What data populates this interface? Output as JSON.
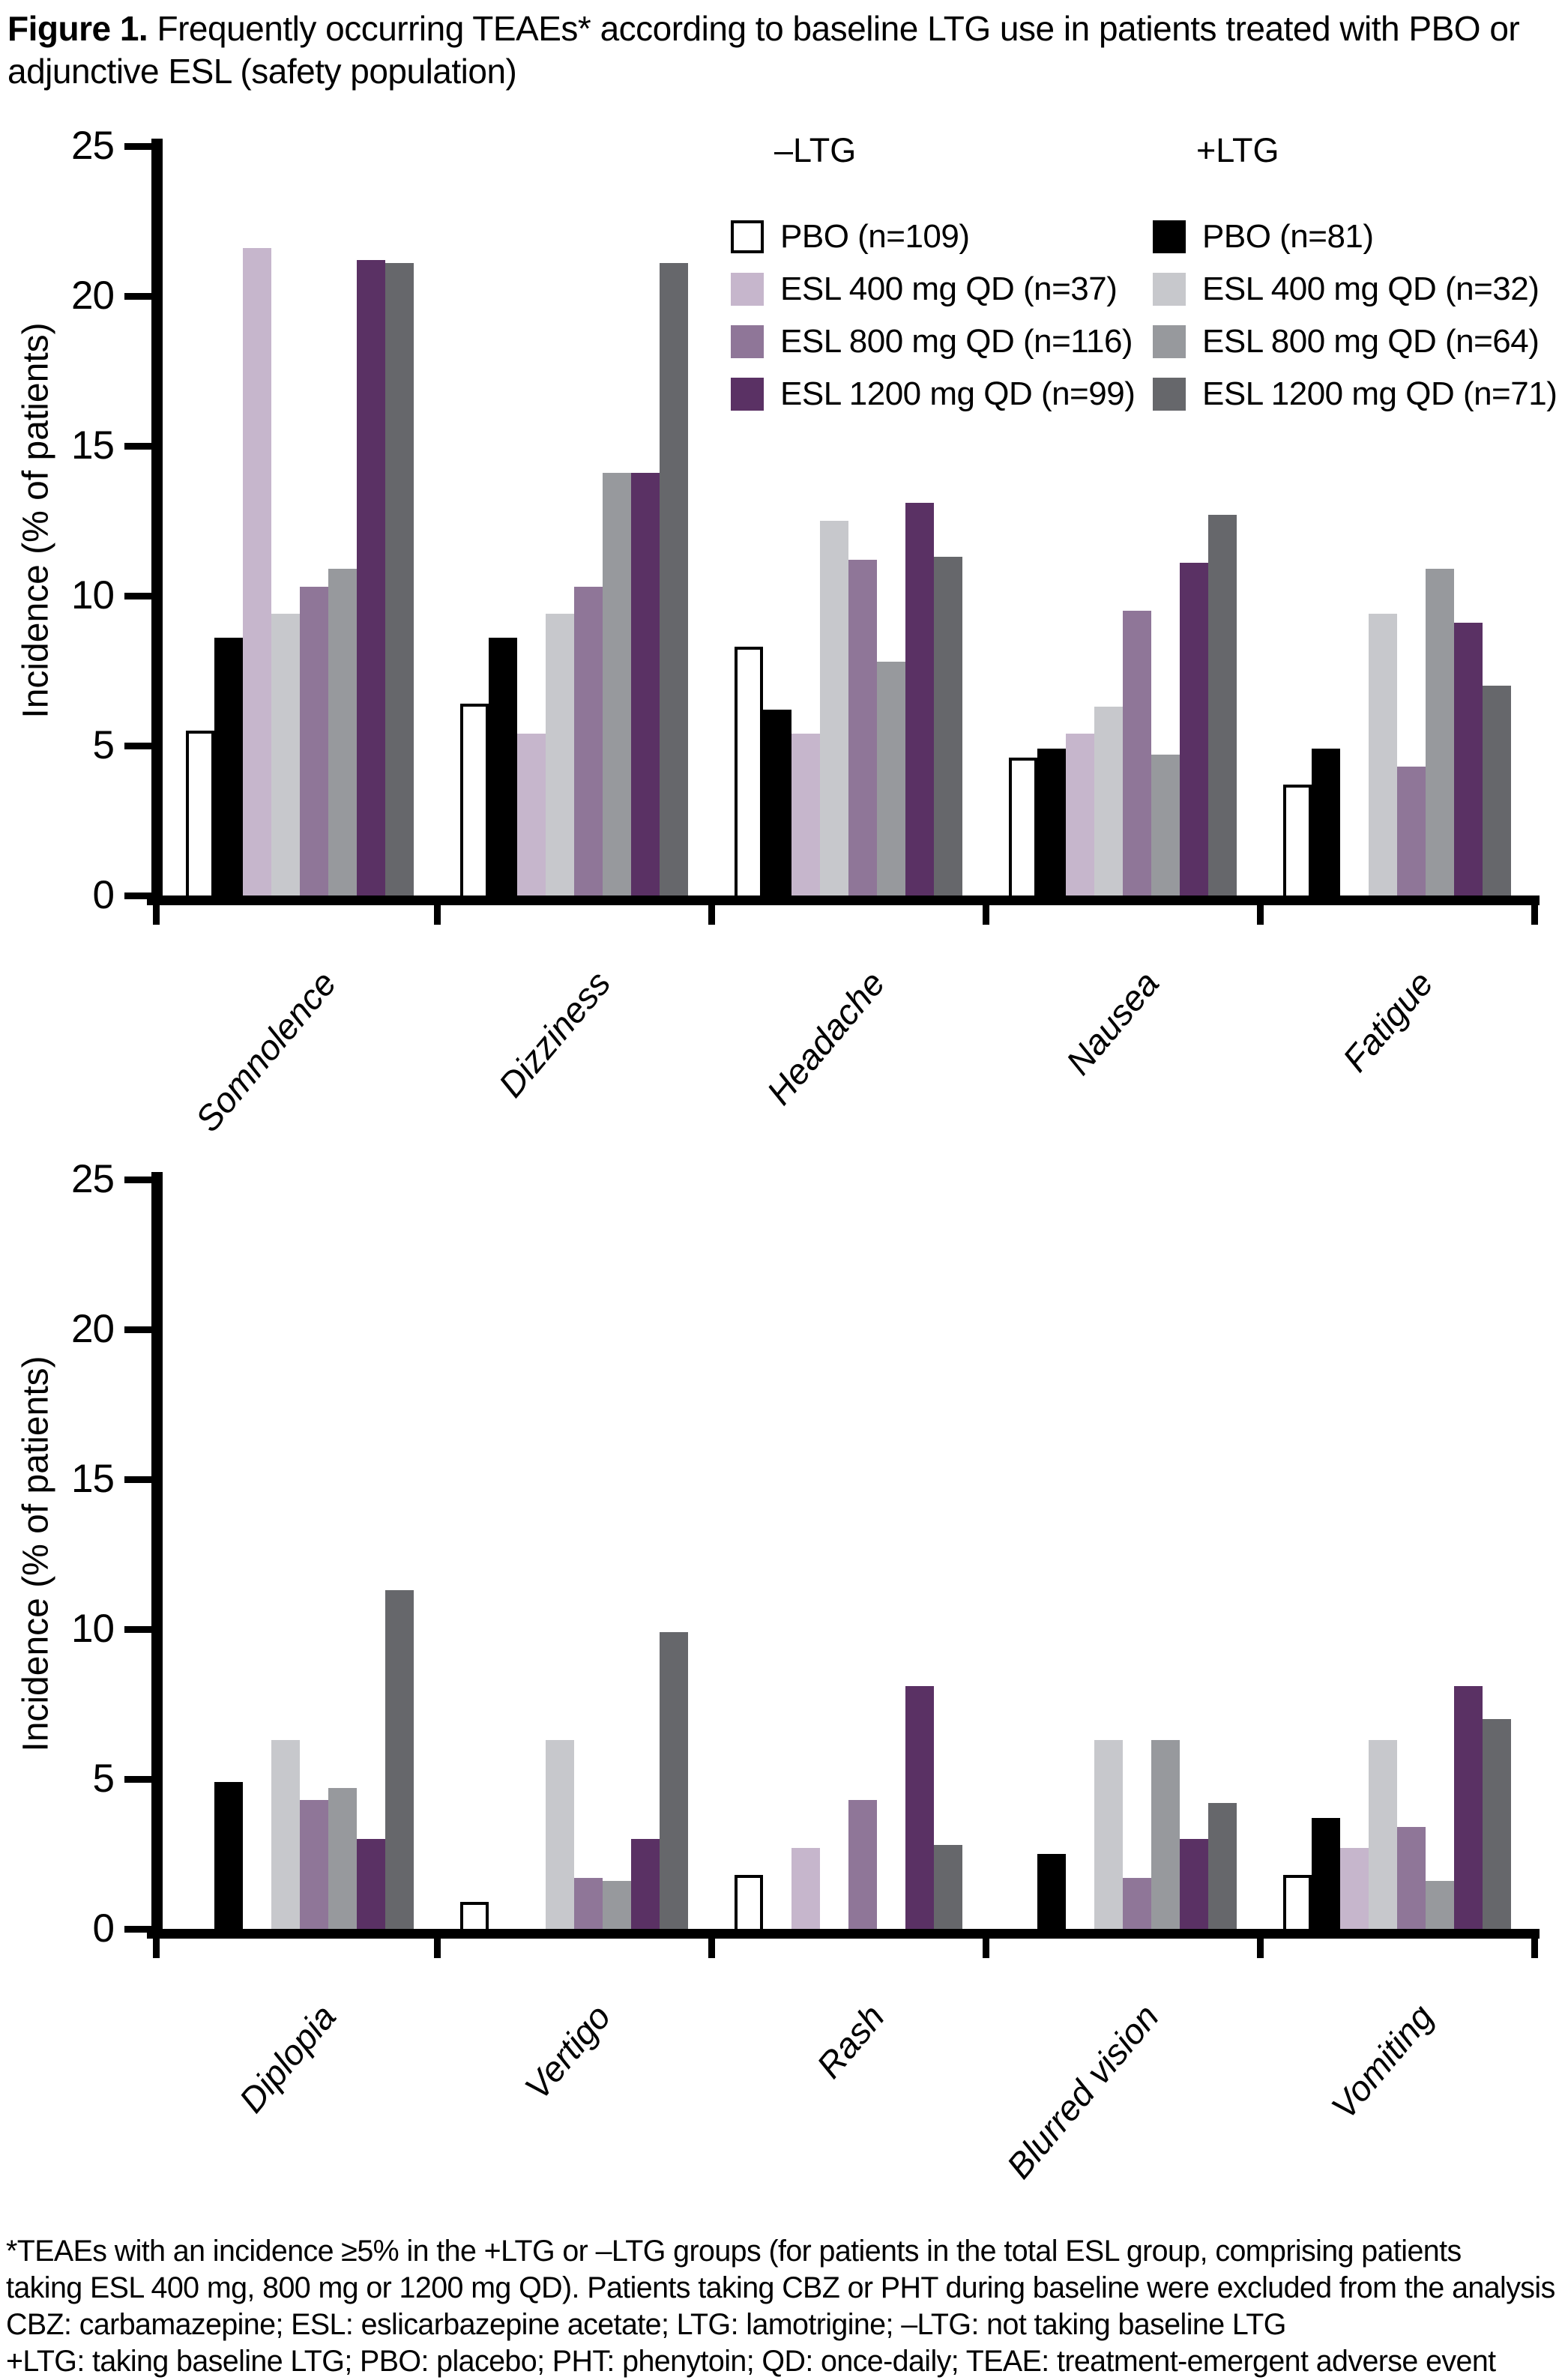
{
  "figure_title": {
    "label": "Figure 1.",
    "text": " Frequently occurring TEAEs* according to baseline LTG use in patients treated with PBO or adjunctive ESL (safety population)"
  },
  "legend": {
    "minus_header": "–LTG",
    "plus_header": "+LTG",
    "minus_items": [
      {
        "label": "PBO (n=109)",
        "color": "#ffffff",
        "outlined": true
      },
      {
        "label": "ESL 400 mg QD (n=37)",
        "color": "#c6b6cc",
        "outlined": false
      },
      {
        "label": "ESL 800 mg QD (n=116)",
        "color": "#8f7698",
        "outlined": false
      },
      {
        "label": "ESL 1200 mg QD (n=99)",
        "color": "#5a3164",
        "outlined": false
      }
    ],
    "plus_items": [
      {
        "label": "PBO (n=81)",
        "color": "#000000",
        "outlined": false
      },
      {
        "label": "ESL 400 mg QD (n=32)",
        "color": "#c7c8cc",
        "outlined": false
      },
      {
        "label": "ESL 800 mg QD (n=64)",
        "color": "#97999d",
        "outlined": false
      },
      {
        "label": "ESL 1200 mg QD (n=71)",
        "color": "#66676b",
        "outlined": false
      }
    ]
  },
  "chart_data": [
    {
      "type": "bar",
      "panel": "top",
      "ylabel": "Incidence (% of patients)",
      "ylim": [
        0,
        25
      ],
      "yticks": [
        0,
        5,
        10,
        15,
        20,
        25
      ],
      "grid": false,
      "legend_position": "top-right inside plot",
      "categories": [
        "Somnolence",
        "Dizziness",
        "Headache",
        "Nausea",
        "Fatigue"
      ],
      "series": [
        {
          "name": "PBO (n=109)",
          "group": "–LTG",
          "color": "#ffffff",
          "outlined": true,
          "values": [
            5.5,
            6.4,
            8.3,
            4.6,
            3.7
          ]
        },
        {
          "name": "PBO (n=81)",
          "group": "+LTG",
          "color": "#000000",
          "outlined": false,
          "values": [
            8.6,
            8.6,
            6.2,
            4.9,
            4.9
          ]
        },
        {
          "name": "ESL 400 mg QD (n=37)",
          "group": "–LTG",
          "color": "#c6b6cc",
          "outlined": false,
          "values": [
            21.6,
            5.4,
            5.4,
            5.4,
            0
          ]
        },
        {
          "name": "ESL 400 mg QD (n=32)",
          "group": "+LTG",
          "color": "#c7c8cc",
          "outlined": false,
          "values": [
            9.4,
            9.4,
            12.5,
            6.3,
            9.4
          ]
        },
        {
          "name": "ESL 800 mg QD (n=116)",
          "group": "–LTG",
          "color": "#8f7698",
          "outlined": false,
          "values": [
            10.3,
            10.3,
            11.2,
            9.5,
            4.3
          ]
        },
        {
          "name": "ESL 800 mg QD (n=64)",
          "group": "+LTG",
          "color": "#97999d",
          "outlined": false,
          "values": [
            10.9,
            14.1,
            7.8,
            4.7,
            10.9
          ]
        },
        {
          "name": "ESL 1200 mg QD (n=99)",
          "group": "–LTG",
          "color": "#5a3164",
          "outlined": false,
          "values": [
            21.2,
            14.1,
            13.1,
            11.1,
            9.1
          ]
        },
        {
          "name": "ESL 1200 mg QD (n=71)",
          "group": "+LTG",
          "color": "#66676b",
          "outlined": false,
          "values": [
            21.1,
            21.1,
            11.3,
            12.7,
            7.0
          ]
        }
      ]
    },
    {
      "type": "bar",
      "panel": "bottom",
      "ylabel": "Incidence (% of patients)",
      "ylim": [
        0,
        25
      ],
      "yticks": [
        0,
        5,
        10,
        15,
        20,
        25
      ],
      "grid": false,
      "legend_position": "none",
      "categories": [
        "Diplopia",
        "Vertigo",
        "Rash",
        "Blurred vision",
        "Vomiting"
      ],
      "series": [
        {
          "name": "PBO (n=109)",
          "group": "–LTG",
          "color": "#ffffff",
          "outlined": true,
          "values": [
            0,
            0.9,
            1.8,
            0,
            1.8
          ]
        },
        {
          "name": "PBO (n=81)",
          "group": "+LTG",
          "color": "#000000",
          "outlined": false,
          "values": [
            4.9,
            0,
            0,
            2.5,
            3.7
          ]
        },
        {
          "name": "ESL 400 mg QD (n=37)",
          "group": "–LTG",
          "color": "#c6b6cc",
          "outlined": false,
          "values": [
            0,
            0,
            2.7,
            0,
            2.7
          ]
        },
        {
          "name": "ESL 400 mg QD (n=32)",
          "group": "+LTG",
          "color": "#c7c8cc",
          "outlined": false,
          "values": [
            6.3,
            6.3,
            0,
            6.3,
            6.3
          ]
        },
        {
          "name": "ESL 800 mg QD (n=116)",
          "group": "–LTG",
          "color": "#8f7698",
          "outlined": false,
          "values": [
            4.3,
            1.7,
            4.3,
            1.7,
            3.4
          ]
        },
        {
          "name": "ESL 800 mg QD (n=64)",
          "group": "+LTG",
          "color": "#97999d",
          "outlined": false,
          "values": [
            4.7,
            1.6,
            0,
            6.3,
            1.6
          ]
        },
        {
          "name": "ESL 1200 mg QD (n=99)",
          "group": "–LTG",
          "color": "#5a3164",
          "outlined": false,
          "values": [
            3.0,
            3.0,
            8.1,
            3.0,
            8.1
          ]
        },
        {
          "name": "ESL 1200 mg QD (n=71)",
          "group": "+LTG",
          "color": "#66676b",
          "outlined": false,
          "values": [
            11.3,
            9.9,
            2.8,
            4.2,
            7.0
          ]
        }
      ]
    }
  ],
  "footnote": {
    "lines": [
      "*TEAEs with an incidence ≥5% in the +LTG or –LTG groups (for patients in the total ESL group, comprising patients",
      "taking ESL 400 mg, 800 mg or 1200 mg QD). Patients taking CBZ or PHT during baseline were excluded from the analysis",
      "CBZ: carbamazepine; ESL: eslicarbazepine acetate; LTG: lamotrigine; –LTG: not taking baseline LTG",
      "+LTG: taking baseline LTG; PBO: placebo; PHT: phenytoin; QD: once-daily; TEAE: treatment-emergent adverse event"
    ]
  }
}
